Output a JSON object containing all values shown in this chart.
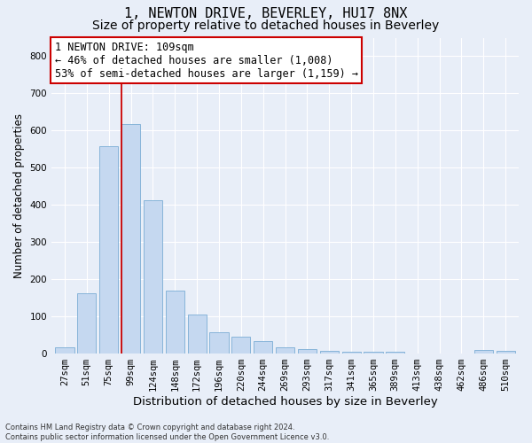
{
  "title": "1, NEWTON DRIVE, BEVERLEY, HU17 8NX",
  "subtitle": "Size of property relative to detached houses in Beverley",
  "xlabel": "Distribution of detached houses by size in Beverley",
  "ylabel": "Number of detached properties",
  "bar_color": "#c5d8f0",
  "bar_edge_color": "#7aadd4",
  "background_color": "#e8eef8",
  "grid_color": "#ffffff",
  "categories": [
    "27sqm",
    "51sqm",
    "75sqm",
    "99sqm",
    "124sqm",
    "148sqm",
    "172sqm",
    "196sqm",
    "220sqm",
    "244sqm",
    "269sqm",
    "293sqm",
    "317sqm",
    "341sqm",
    "365sqm",
    "389sqm",
    "413sqm",
    "438sqm",
    "462sqm",
    "486sqm",
    "510sqm"
  ],
  "values": [
    18,
    163,
    558,
    618,
    413,
    170,
    104,
    57,
    45,
    33,
    17,
    11,
    8,
    5,
    5,
    4,
    0,
    0,
    0,
    10,
    7
  ],
  "ylim": [
    0,
    850
  ],
  "yticks": [
    0,
    100,
    200,
    300,
    400,
    500,
    600,
    700,
    800
  ],
  "vline_x": 3.0,
  "vline_color": "#cc0000",
  "annotation_text": "1 NEWTON DRIVE: 109sqm\n← 46% of detached houses are smaller (1,008)\n53% of semi-detached houses are larger (1,159) →",
  "annotation_box_color": "#ffffff",
  "annotation_box_edge": "#cc0000",
  "footnote": "Contains HM Land Registry data © Crown copyright and database right 2024.\nContains public sector information licensed under the Open Government Licence v3.0.",
  "title_fontsize": 11,
  "subtitle_fontsize": 10,
  "xlabel_fontsize": 9.5,
  "ylabel_fontsize": 8.5,
  "tick_fontsize": 7.5,
  "annot_fontsize": 8.5
}
